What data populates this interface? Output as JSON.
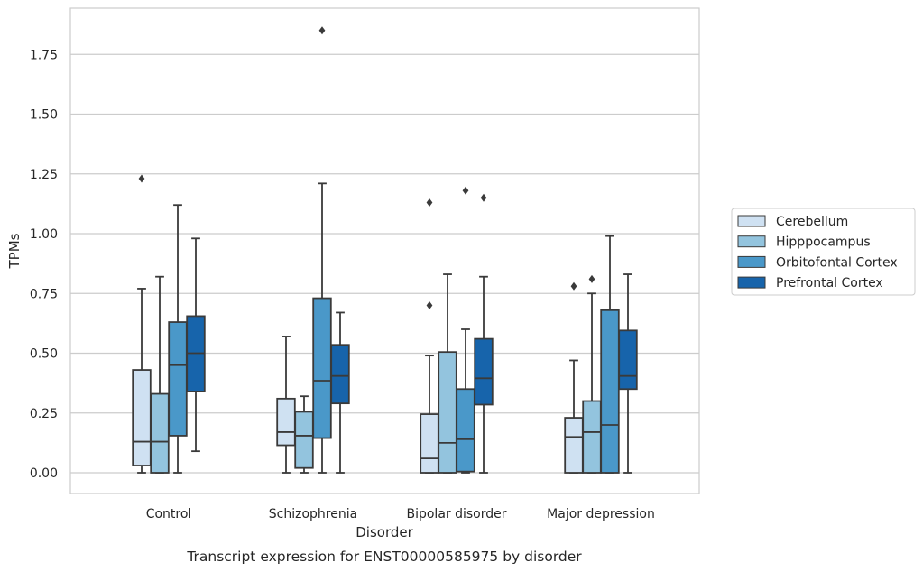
{
  "caption": "Transcript expression for ENST00000585975 by disorder",
  "colors": {
    "Cerebellum": "#cfe1f2",
    "Hipppocampus": "#93c4de",
    "Orbitofontal Cortex": "#4a98c9",
    "Prefrontal Cortex": "#1764ab",
    "box_edge": "#3a3a3a",
    "grid": "#cccccc",
    "frame": "#cccccc"
  },
  "chart_data": {
    "type": "boxplot",
    "xlabel": "Disorder",
    "ylabel": "TPMs",
    "ylim": [
      -0.09,
      1.95
    ],
    "yticks": [
      0.0,
      0.25,
      0.5,
      0.75,
      1.0,
      1.25,
      1.5,
      1.75
    ],
    "ytick_labels": [
      "0.00",
      "0.25",
      "0.50",
      "0.75",
      "1.00",
      "1.25",
      "1.50",
      "1.75"
    ],
    "grid": "horizontal",
    "legend_position": "right-center",
    "categories": [
      "Control",
      "Schizophrenia",
      "Bipolar disorder",
      "Major depression"
    ],
    "series": [
      {
        "name": "Cerebellum",
        "boxes": [
          {
            "whisker_low": 0.0,
            "q1": 0.03,
            "median": 0.13,
            "q3": 0.43,
            "whisker_high": 0.77,
            "outliers": [
              1.23
            ]
          },
          {
            "whisker_low": 0.0,
            "q1": 0.115,
            "median": 0.17,
            "q3": 0.31,
            "whisker_high": 0.57,
            "outliers": []
          },
          {
            "whisker_low": 0.0,
            "q1": 0.0,
            "median": 0.06,
            "q3": 0.245,
            "whisker_high": 0.49,
            "outliers": [
              0.7,
              1.13
            ]
          },
          {
            "whisker_low": 0.0,
            "q1": 0.0,
            "median": 0.15,
            "q3": 0.23,
            "whisker_high": 0.47,
            "outliers": [
              0.78
            ]
          }
        ]
      },
      {
        "name": "Hipppocampus",
        "boxes": [
          {
            "whisker_low": 0.0,
            "q1": 0.0,
            "median": 0.13,
            "q3": 0.33,
            "whisker_high": 0.82,
            "outliers": []
          },
          {
            "whisker_low": 0.0,
            "q1": 0.02,
            "median": 0.155,
            "q3": 0.255,
            "whisker_high": 0.32,
            "outliers": []
          },
          {
            "whisker_low": 0.0,
            "q1": 0.0,
            "median": 0.125,
            "q3": 0.505,
            "whisker_high": 0.83,
            "outliers": []
          },
          {
            "whisker_low": 0.0,
            "q1": 0.0,
            "median": 0.17,
            "q3": 0.3,
            "whisker_high": 0.75,
            "outliers": [
              0.81
            ]
          }
        ]
      },
      {
        "name": "Orbitofontal Cortex",
        "boxes": [
          {
            "whisker_low": 0.0,
            "q1": 0.155,
            "median": 0.45,
            "q3": 0.63,
            "whisker_high": 1.12,
            "outliers": []
          },
          {
            "whisker_low": 0.0,
            "q1": 0.145,
            "median": 0.385,
            "q3": 0.73,
            "whisker_high": 1.21,
            "outliers": [
              1.85
            ]
          },
          {
            "whisker_low": 0.0,
            "q1": 0.005,
            "median": 0.14,
            "q3": 0.35,
            "whisker_high": 0.6,
            "outliers": [
              1.18
            ]
          },
          {
            "whisker_low": 0.0,
            "q1": 0.0,
            "median": 0.2,
            "q3": 0.68,
            "whisker_high": 0.99,
            "outliers": []
          }
        ]
      },
      {
        "name": "Prefrontal Cortex",
        "boxes": [
          {
            "whisker_low": 0.09,
            "q1": 0.34,
            "median": 0.5,
            "q3": 0.655,
            "whisker_high": 0.98,
            "outliers": []
          },
          {
            "whisker_low": 0.0,
            "q1": 0.29,
            "median": 0.405,
            "q3": 0.535,
            "whisker_high": 0.67,
            "outliers": []
          },
          {
            "whisker_low": 0.0,
            "q1": 0.285,
            "median": 0.395,
            "q3": 0.56,
            "whisker_high": 0.82,
            "outliers": [
              1.15
            ]
          },
          {
            "whisker_low": 0.0,
            "q1": 0.35,
            "median": 0.405,
            "q3": 0.595,
            "whisker_high": 0.83,
            "outliers": []
          }
        ]
      }
    ]
  }
}
